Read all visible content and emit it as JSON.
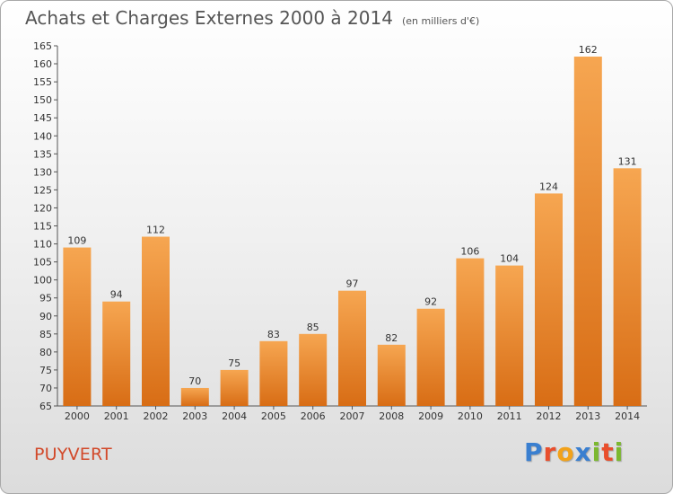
{
  "header": {
    "title": "Achats et Charges Externes 2000 à 2014",
    "subtitle": "(en milliers d'€)"
  },
  "footer": {
    "commune": "PUYVERT",
    "logo": {
      "text": "Proxiti",
      "letters": [
        "P",
        "r",
        "o",
        "x",
        "i",
        "t",
        "i"
      ]
    }
  },
  "colors": {
    "bar_top": "#f6a651",
    "bar_bottom": "#d86d15",
    "title": "#555555",
    "commune": "#d2492a",
    "logo": [
      "#3a7fd0",
      "#e94e2c",
      "#f2a21a",
      "#3a7fd0",
      "#7cb82f",
      "#e94e2c",
      "#7cb82f"
    ]
  },
  "chart_data": {
    "type": "bar",
    "title": "Achats et Charges Externes 2000 à 2014",
    "subtitle": "(en milliers d'€)",
    "categories": [
      "2000",
      "2001",
      "2002",
      "2003",
      "2004",
      "2005",
      "2006",
      "2007",
      "2008",
      "2009",
      "2010",
      "2011",
      "2012",
      "2013",
      "2014"
    ],
    "values": [
      109,
      94,
      112,
      70,
      75,
      83,
      85,
      97,
      82,
      92,
      106,
      104,
      124,
      162,
      131
    ],
    "data_labels": [
      "109",
      "94",
      "112",
      "70",
      "75",
      "83",
      "85",
      "97",
      "82",
      "92",
      "106",
      "104",
      "124",
      "162",
      "131"
    ],
    "ylim": [
      65,
      165
    ],
    "yticks": [
      65,
      70,
      75,
      80,
      85,
      90,
      95,
      100,
      105,
      110,
      115,
      120,
      125,
      130,
      135,
      140,
      145,
      150,
      155,
      160,
      165
    ],
    "grid": false,
    "legend": "none"
  }
}
